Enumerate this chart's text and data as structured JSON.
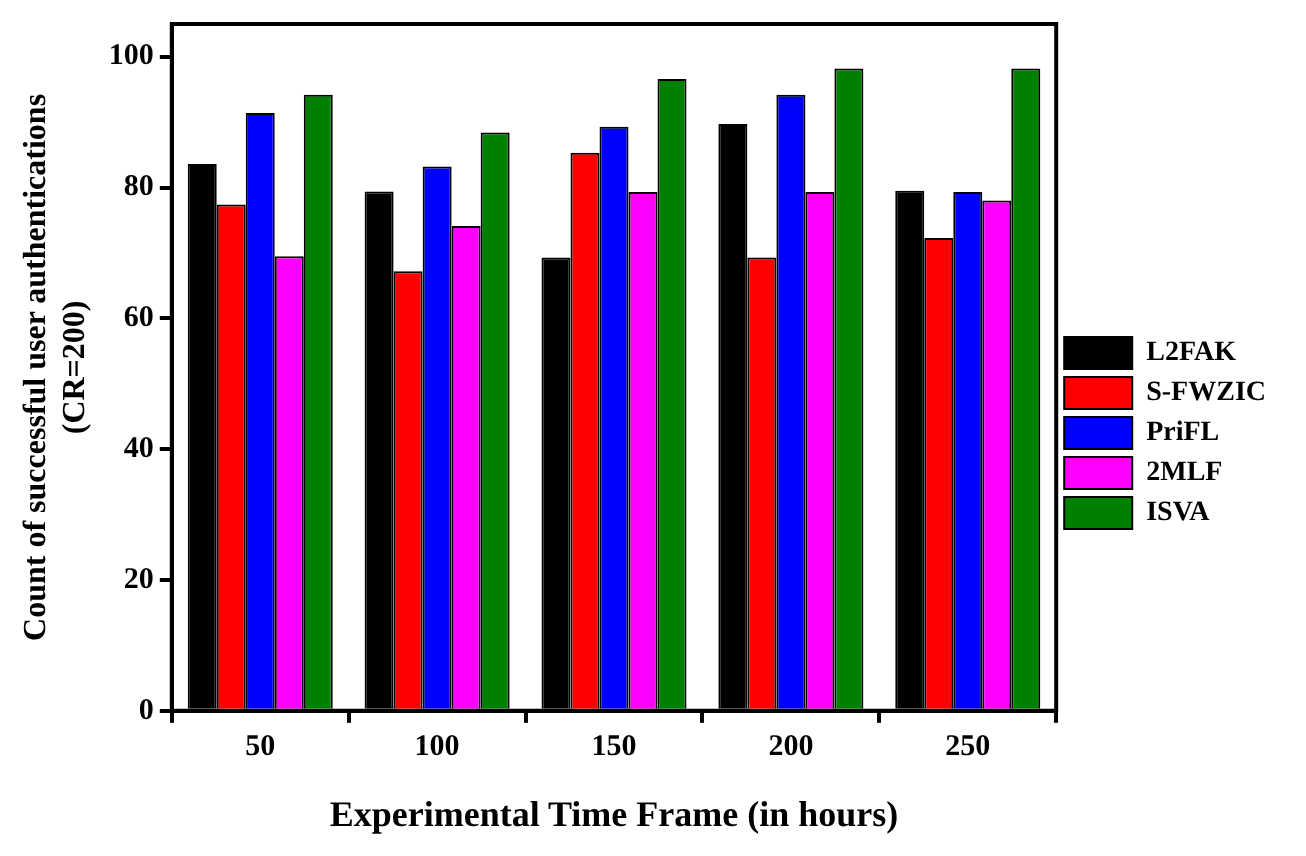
{
  "chart_data": {
    "type": "bar",
    "xlabel": "Experimental Time Frame (in hours)",
    "ylabel": "Count of successful user authentications\n(CR=200)",
    "categories": [
      "50",
      "100",
      "150",
      "200",
      "250"
    ],
    "series": [
      {
        "name": "L2FAK",
        "color": "#000000",
        "values": [
          83.6,
          79.4,
          69.3,
          89.7,
          79.5
        ]
      },
      {
        "name": "S-FWZIC",
        "color": "#ff0000",
        "values": [
          77.4,
          67.2,
          85.3,
          69.3,
          72.3
        ]
      },
      {
        "name": "PriFL",
        "color": "#0000ff",
        "values": [
          91.4,
          83.2,
          89.3,
          94.2,
          79.3
        ]
      },
      {
        "name": "2MLF",
        "color": "#ff00ff",
        "values": [
          69.5,
          74.1,
          79.3,
          79.3,
          78.0
        ]
      },
      {
        "name": "ISVA",
        "color": "#008000",
        "values": [
          94.2,
          88.4,
          96.6,
          98.2,
          98.2
        ]
      }
    ],
    "ylim": [
      0,
      105
    ],
    "yticks": [
      0,
      20,
      40,
      60,
      80,
      100
    ],
    "grid": false,
    "legend": "right"
  }
}
